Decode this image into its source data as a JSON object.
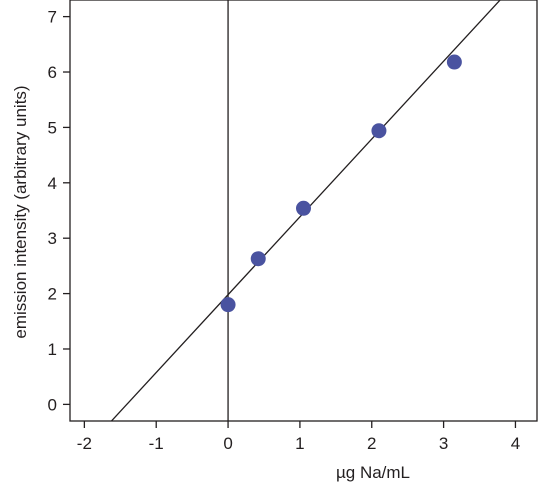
{
  "chart_data": {
    "type": "scatter",
    "xlabel": "µg Na/mL",
    "ylabel": "emission intensity (arbitrary units)",
    "xlim": [
      -2.2,
      4.3
    ],
    "ylim": [
      -0.3,
      7.3
    ],
    "x_ticks": [
      -2,
      -1,
      0,
      1,
      2,
      3,
      4
    ],
    "y_ticks": [
      0,
      1,
      2,
      3,
      4,
      5,
      6,
      7
    ],
    "x_tick_labels": [
      "-2",
      "-1",
      "0",
      "1",
      "2",
      "3",
      "4"
    ],
    "y_tick_labels": [
      "0",
      "1",
      "2",
      "3",
      "4",
      "5",
      "6",
      "7"
    ],
    "points": {
      "x": [
        0.0,
        0.42,
        1.05,
        2.1,
        3.15
      ],
      "y": [
        1.8,
        2.63,
        3.54,
        4.94,
        6.18
      ]
    },
    "fit_line": {
      "slope": 1.405,
      "intercept": 1.98
    },
    "vertical_line_x": 0,
    "grid": false,
    "colors": {
      "marker": "#4a53a0",
      "line": "#231f20",
      "axis": "#231f20"
    }
  }
}
